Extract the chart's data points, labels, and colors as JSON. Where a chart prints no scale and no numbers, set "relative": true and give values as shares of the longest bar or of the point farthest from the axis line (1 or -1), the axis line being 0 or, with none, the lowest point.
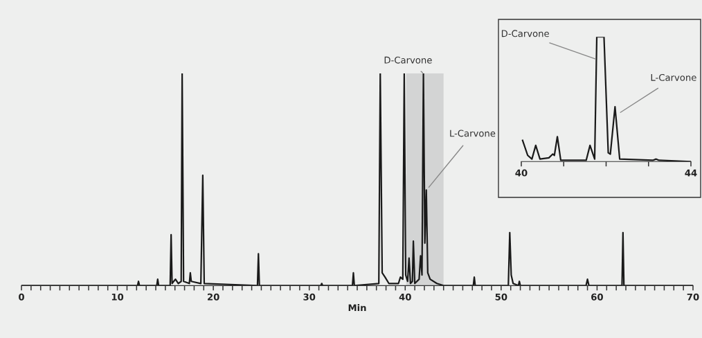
{
  "chart_data": [
    {
      "type": "line",
      "relative": true,
      "xlabel": "Min",
      "xlim": [
        0,
        70
      ],
      "xticks": [
        0,
        {
          "value": 1,
          "label": null
        },
        {
          "value": 2,
          "label": null
        },
        {
          "value": 3,
          "label": null
        },
        {
          "value": 4,
          "label": null
        },
        {
          "value": 5,
          "label": null
        },
        {
          "value": 6,
          "label": null
        },
        {
          "value": 7,
          "label": null
        },
        {
          "value": 8,
          "label": null
        },
        {
          "value": 9,
          "label": null
        },
        10,
        {
          "value": 11,
          "label": null
        },
        {
          "value": 12,
          "label": null
        },
        {
          "value": 13,
          "label": null
        },
        {
          "value": 14,
          "label": null
        },
        {
          "value": 15,
          "label": null
        },
        {
          "value": 16,
          "label": null
        },
        {
          "value": 17,
          "label": null
        },
        {
          "value": 18,
          "label": null
        },
        {
          "value": 19,
          "label": null
        },
        20,
        {
          "value": 21,
          "label": null
        },
        {
          "value": 22,
          "label": null
        },
        {
          "value": 23,
          "label": null
        },
        {
          "value": 24,
          "label": null
        },
        {
          "value": 25,
          "label": null
        },
        {
          "value": 26,
          "label": null
        },
        {
          "value": 27,
          "label": null
        },
        {
          "value": 28,
          "label": null
        },
        {
          "value": 29,
          "label": null
        },
        30,
        {
          "value": 31,
          "label": null
        },
        {
          "value": 32,
          "label": null
        },
        {
          "value": 33,
          "label": null
        },
        {
          "value": 34,
          "label": null
        },
        {
          "value": 35,
          "label": null
        },
        {
          "value": 36,
          "label": null
        },
        {
          "value": 37,
          "label": null
        },
        {
          "value": 38,
          "label": null
        },
        {
          "value": 39,
          "label": null
        },
        40,
        {
          "value": 41,
          "label": null
        },
        {
          "value": 42,
          "label": null
        },
        {
          "value": 43,
          "label": null
        },
        {
          "value": 44,
          "label": null
        },
        {
          "value": 45,
          "label": null
        },
        {
          "value": 46,
          "label": null
        },
        {
          "value": 47,
          "label": null
        },
        {
          "value": 48,
          "label": null
        },
        {
          "value": 49,
          "label": null
        },
        50,
        {
          "value": 51,
          "label": null
        },
        {
          "value": 52,
          "label": null
        },
        {
          "value": 53,
          "label": null
        },
        {
          "value": 54,
          "label": null
        },
        {
          "value": 55,
          "label": null
        },
        {
          "value": 56,
          "label": null
        },
        {
          "value": 57,
          "label": null
        },
        {
          "value": 58,
          "label": null
        },
        {
          "value": 59,
          "label": null
        },
        60,
        {
          "value": 61,
          "label": null
        },
        {
          "value": 62,
          "label": null
        },
        {
          "value": 63,
          "label": null
        },
        {
          "value": 64,
          "label": null
        },
        {
          "value": 65,
          "label": null
        },
        {
          "value": 66,
          "label": null
        },
        {
          "value": 67,
          "label": null
        },
        {
          "value": 68,
          "label": null
        },
        {
          "value": 69,
          "label": null
        },
        70
      ],
      "series": [
        {
          "color": "#1a1a1a",
          "x": [
            0,
            12.1,
            12.2,
            12.3,
            14.1,
            14.2,
            14.3,
            15.5,
            15.6,
            15.7,
            16.05,
            16.35,
            16.65,
            16.75,
            16.9,
            17.5,
            17.6,
            17.7,
            18.7,
            18.9,
            19.05,
            24.6,
            24.7,
            24.8,
            31.2,
            31.3,
            31.4,
            34.5,
            34.6,
            34.7,
            37.25,
            37.4,
            37.6,
            37.9,
            38.3,
            39.3,
            39.5,
            39.75,
            39.9,
            40.05,
            40.25,
            40.4,
            40.55,
            40.75,
            40.85,
            41.0,
            41.45,
            41.6,
            41.75,
            41.9,
            42.05,
            42.2,
            42.35,
            42.6,
            43.3,
            44,
            47.1,
            47.2,
            47.3,
            50.75,
            50.9,
            51.05,
            51.25,
            51.8,
            51.9,
            52.0,
            58.85,
            59.0,
            59.15,
            62.6,
            62.7,
            62.8,
            70
          ],
          "values": [
            0,
            0,
            0.02,
            0,
            0,
            0.03,
            0,
            0,
            0.24,
            0.01,
            0.03,
            0.01,
            0.02,
            1.0,
            0.02,
            0.01,
            0.06,
            0.02,
            0.01,
            0.52,
            0.01,
            0,
            0.15,
            0,
            0,
            0.01,
            0,
            0,
            0.06,
            0,
            0.01,
            1.0,
            0.06,
            0.04,
            0.01,
            0.01,
            0.04,
            0.03,
            1.0,
            0.05,
            0.02,
            0.13,
            0.01,
            0.02,
            0.21,
            0.01,
            0.03,
            0.14,
            0.05,
            1.0,
            0.2,
            0.45,
            0.06,
            0.03,
            0.01,
            0,
            0,
            0.04,
            0,
            0,
            0.25,
            0.05,
            0.01,
            0,
            0.02,
            0,
            0,
            0.03,
            0,
            0,
            0.25,
            0,
            0
          ]
        }
      ],
      "bands": [
        {
          "axis": "x",
          "from": 40.1,
          "to": 44,
          "color": "#d3d4d4"
        }
      ],
      "annotations": [
        {
          "text": "D-Carvone",
          "x": 41.9,
          "y": 1.0
        },
        {
          "text": "L-Carvone",
          "x": 42.4,
          "y": 0.46
        }
      ]
    },
    {
      "type": "line",
      "relative": true,
      "xlim": [
        40,
        44
      ],
      "xticks": [
        40,
        {
          "value": 41,
          "label": null
        },
        {
          "value": 42,
          "label": null
        },
        {
          "value": 43,
          "label": null
        },
        44
      ],
      "series": [
        {
          "color": "#1a1a1a",
          "x": [
            40.03,
            40.15,
            40.25,
            40.34,
            40.44,
            40.65,
            40.74,
            40.78,
            40.85,
            40.93,
            41.12,
            41.53,
            41.62,
            41.73,
            41.78,
            41.95,
            42.05,
            42.1,
            42.21,
            42.32,
            43.1,
            43.18,
            43.25,
            44.0
          ],
          "values": [
            0.17,
            0.05,
            0.02,
            0.13,
            0.02,
            0.03,
            0.06,
            0.05,
            0.2,
            0.01,
            0.01,
            0.01,
            0.13,
            0.02,
            1.0,
            1.0,
            0.07,
            0.06,
            0.44,
            0.02,
            0.01,
            0.02,
            0.01,
            0
          ]
        }
      ],
      "annotations": [
        {
          "text": "D-Carvone",
          "x": 41.77,
          "y": 0.82
        },
        {
          "text": "L-Carvone",
          "x": 42.32,
          "y": 0.39
        }
      ]
    }
  ]
}
